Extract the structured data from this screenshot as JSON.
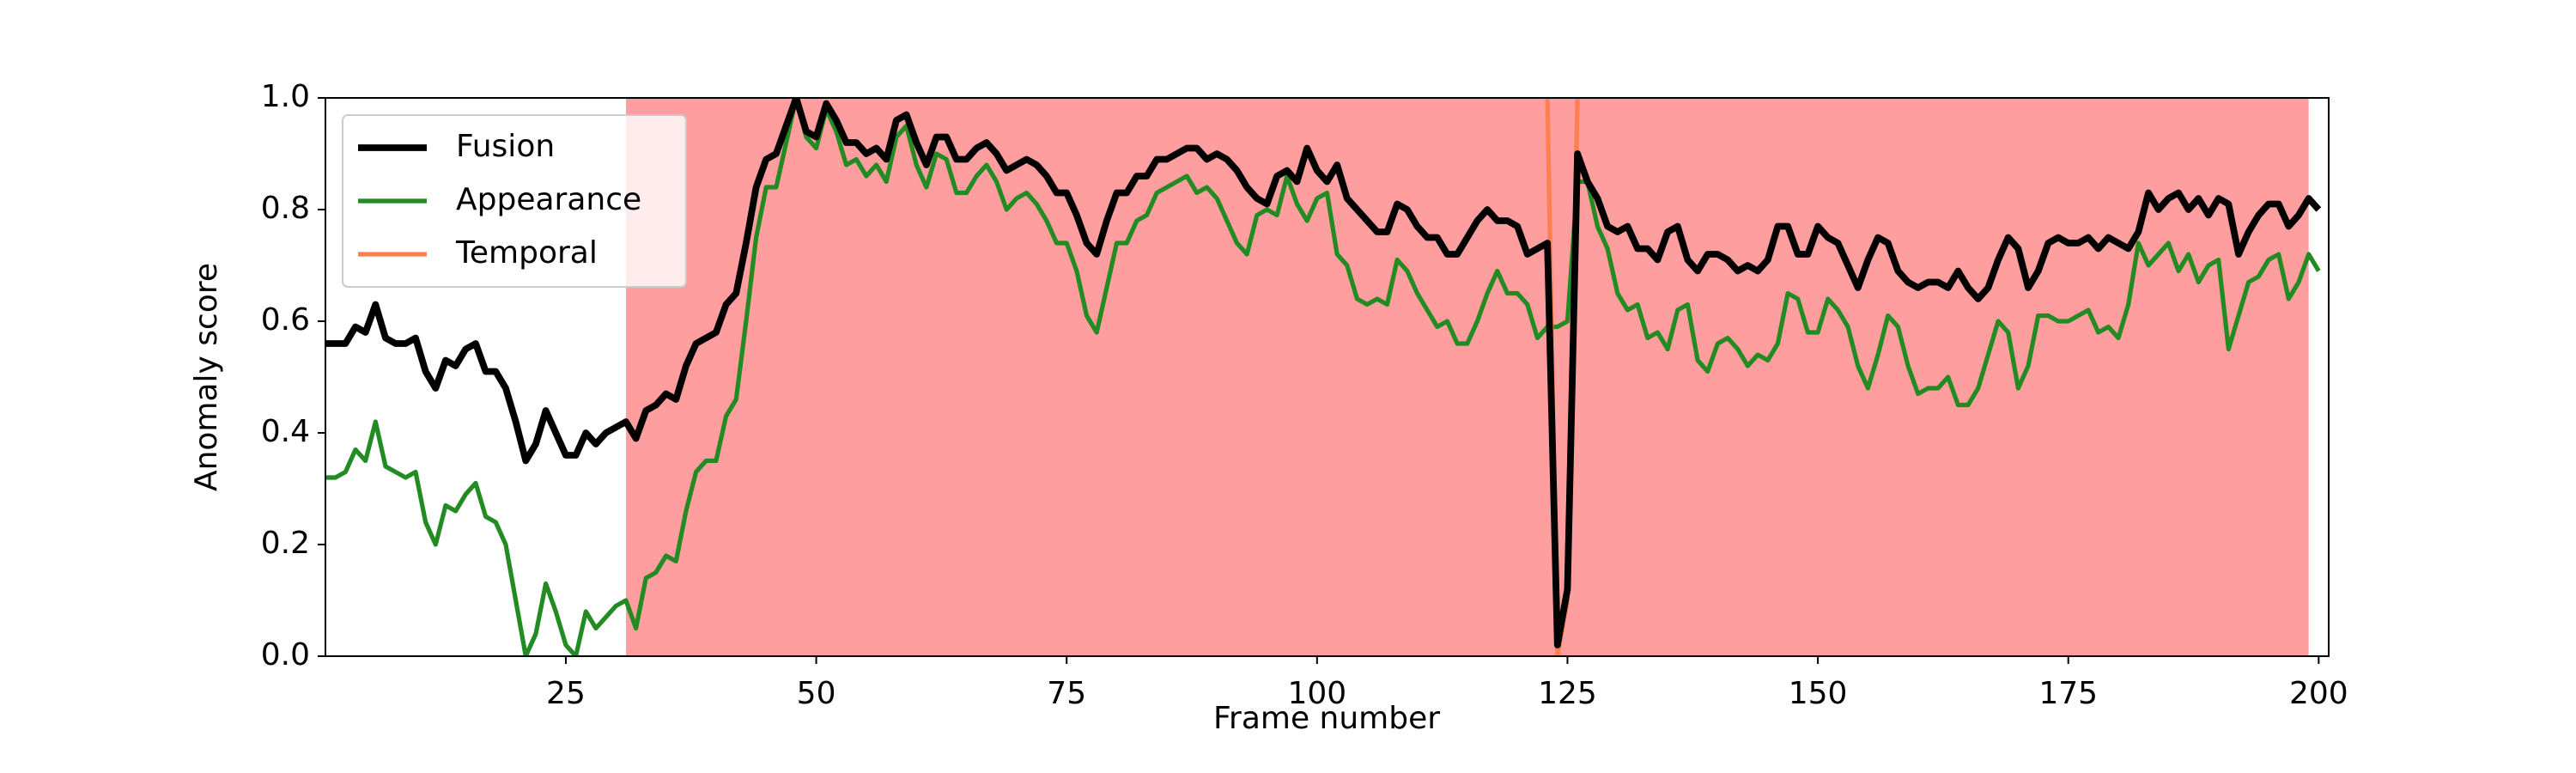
{
  "chart_data": {
    "type": "line",
    "xlabel": "Frame number",
    "ylabel": "Anomaly score",
    "xlim": [
      1,
      201
    ],
    "ylim": [
      0,
      1
    ],
    "xticks": [
      25,
      50,
      75,
      100,
      125,
      150,
      175,
      200
    ],
    "yticks": [
      {
        "value": 0,
        "label": "0.0"
      },
      {
        "value": 0.2,
        "label": "0.2"
      },
      {
        "value": 0.4,
        "label": "0.4"
      },
      {
        "value": 0.6,
        "label": "0.6"
      },
      {
        "value": 0.8,
        "label": "0.8"
      },
      {
        "value": 1,
        "label": "1.0"
      }
    ],
    "shaded_span": [
      31,
      199
    ],
    "shade_color": "#ff9999",
    "legend": "upper left",
    "x": [
      1,
      2,
      3,
      4,
      5,
      6,
      7,
      8,
      9,
      10,
      11,
      12,
      13,
      14,
      15,
      16,
      17,
      18,
      19,
      20,
      21,
      22,
      23,
      24,
      25,
      26,
      27,
      28,
      29,
      30,
      31,
      32,
      33,
      34,
      35,
      36,
      37,
      38,
      39,
      40,
      41,
      42,
      43,
      44,
      45,
      46,
      47,
      48,
      49,
      50,
      51,
      52,
      53,
      54,
      55,
      56,
      57,
      58,
      59,
      60,
      61,
      62,
      63,
      64,
      65,
      66,
      67,
      68,
      69,
      70,
      71,
      72,
      73,
      74,
      75,
      76,
      77,
      78,
      79,
      80,
      81,
      82,
      83,
      84,
      85,
      86,
      87,
      88,
      89,
      90,
      91,
      92,
      93,
      94,
      95,
      96,
      97,
      98,
      99,
      100,
      101,
      102,
      103,
      104,
      105,
      106,
      107,
      108,
      109,
      110,
      111,
      112,
      113,
      114,
      115,
      116,
      117,
      118,
      119,
      120,
      121,
      122,
      123,
      124,
      125,
      126,
      127,
      128,
      129,
      130,
      131,
      132,
      133,
      134,
      135,
      136,
      137,
      138,
      139,
      140,
      141,
      142,
      143,
      144,
      145,
      146,
      147,
      148,
      149,
      150,
      151,
      152,
      153,
      154,
      155,
      156,
      157,
      158,
      159,
      160,
      161,
      162,
      163,
      164,
      165,
      166,
      167,
      168,
      169,
      170,
      171,
      172,
      173,
      174,
      175,
      176,
      177,
      178,
      179,
      180,
      181,
      182,
      183,
      184,
      185,
      186,
      187,
      188,
      189,
      190,
      191,
      192,
      193,
      194,
      195,
      196,
      197,
      198,
      199,
      200
    ],
    "series": [
      {
        "name": "Fusion",
        "color": "#000000",
        "width": 3,
        "values": [
          0.56,
          0.56,
          0.56,
          0.59,
          0.58,
          0.63,
          0.57,
          0.56,
          0.56,
          0.57,
          0.51,
          0.48,
          0.53,
          0.52,
          0.55,
          0.56,
          0.51,
          0.51,
          0.48,
          0.42,
          0.35,
          0.38,
          0.44,
          0.4,
          0.36,
          0.36,
          0.4,
          0.38,
          0.4,
          0.41,
          0.42,
          0.39,
          0.44,
          0.45,
          0.47,
          0.46,
          0.52,
          0.56,
          0.57,
          0.58,
          0.63,
          0.65,
          0.74,
          0.84,
          0.89,
          0.9,
          0.95,
          1.0,
          0.94,
          0.93,
          0.99,
          0.96,
          0.92,
          0.92,
          0.9,
          0.91,
          0.89,
          0.96,
          0.97,
          0.92,
          0.88,
          0.93,
          0.93,
          0.89,
          0.89,
          0.91,
          0.92,
          0.9,
          0.87,
          0.88,
          0.89,
          0.88,
          0.86,
          0.83,
          0.83,
          0.79,
          0.74,
          0.72,
          0.78,
          0.83,
          0.83,
          0.86,
          0.86,
          0.89,
          0.89,
          0.9,
          0.91,
          0.91,
          0.89,
          0.9,
          0.89,
          0.87,
          0.84,
          0.82,
          0.81,
          0.86,
          0.87,
          0.85,
          0.91,
          0.87,
          0.85,
          0.88,
          0.82,
          0.8,
          0.78,
          0.76,
          0.76,
          0.81,
          0.8,
          0.77,
          0.75,
          0.75,
          0.72,
          0.72,
          0.75,
          0.78,
          0.8,
          0.78,
          0.78,
          0.77,
          0.72,
          0.73,
          0.74,
          0.02,
          0.12,
          0.9,
          0.85,
          0.82,
          0.77,
          0.76,
          0.77,
          0.73,
          0.73,
          0.71,
          0.76,
          0.77,
          0.71,
          0.69,
          0.72,
          0.72,
          0.71,
          0.69,
          0.7,
          0.69,
          0.71,
          0.77,
          0.77,
          0.72,
          0.72,
          0.77,
          0.75,
          0.74,
          0.7,
          0.66,
          0.71,
          0.75,
          0.74,
          0.69,
          0.67,
          0.66,
          0.67,
          0.67,
          0.66,
          0.69,
          0.66,
          0.64,
          0.66,
          0.71,
          0.75,
          0.73,
          0.66,
          0.69,
          0.74,
          0.75,
          0.74,
          0.74,
          0.75,
          0.73,
          0.75,
          0.74,
          0.73,
          0.76,
          0.83,
          0.8,
          0.82,
          0.83,
          0.8,
          0.82,
          0.79,
          0.82,
          0.81,
          0.72,
          0.76,
          0.79,
          0.81,
          0.81,
          0.77,
          0.79,
          0.82,
          0.8
        ]
      },
      {
        "name": "Appearance",
        "color": "#228b22",
        "width": 2,
        "values": [
          0.32,
          0.32,
          0.33,
          0.37,
          0.35,
          0.42,
          0.34,
          0.33,
          0.32,
          0.33,
          0.24,
          0.2,
          0.27,
          0.26,
          0.29,
          0.31,
          0.25,
          0.24,
          0.2,
          0.1,
          0.0,
          0.04,
          0.13,
          0.08,
          0.02,
          0.0,
          0.08,
          0.05,
          0.07,
          0.09,
          0.1,
          0.05,
          0.14,
          0.15,
          0.18,
          0.17,
          0.26,
          0.33,
          0.35,
          0.35,
          0.43,
          0.46,
          0.6,
          0.75,
          0.84,
          0.84,
          0.92,
          1.0,
          0.93,
          0.91,
          0.98,
          0.94,
          0.88,
          0.89,
          0.86,
          0.88,
          0.85,
          0.93,
          0.95,
          0.88,
          0.84,
          0.9,
          0.89,
          0.83,
          0.83,
          0.86,
          0.88,
          0.85,
          0.8,
          0.82,
          0.83,
          0.81,
          0.78,
          0.74,
          0.74,
          0.69,
          0.61,
          0.58,
          0.66,
          0.74,
          0.74,
          0.78,
          0.79,
          0.83,
          0.84,
          0.85,
          0.86,
          0.83,
          0.84,
          0.82,
          0.78,
          0.74,
          0.72,
          0.79,
          0.8,
          0.79,
          0.86,
          0.81,
          0.78,
          0.82,
          0.83,
          0.72,
          0.7,
          0.64,
          0.63,
          0.64,
          0.63,
          0.71,
          0.69,
          0.65,
          0.62,
          0.59,
          0.6,
          0.56,
          0.56,
          0.6,
          0.65,
          0.69,
          0.65,
          0.65,
          0.63,
          0.57,
          0.59,
          0.59,
          0.6,
          0.85,
          0.85,
          0.77,
          0.73,
          0.65,
          0.62,
          0.63,
          0.57,
          0.58,
          0.55,
          0.62,
          0.63,
          0.53,
          0.51,
          0.56,
          0.57,
          0.55,
          0.52,
          0.54,
          0.53,
          0.56,
          0.65,
          0.64,
          0.58,
          0.58,
          0.64,
          0.62,
          0.59,
          0.52,
          0.48,
          0.54,
          0.61,
          0.59,
          0.52,
          0.47,
          0.48,
          0.48,
          0.5,
          0.45,
          0.45,
          0.48,
          0.54,
          0.6,
          0.58,
          0.48,
          0.52,
          0.61,
          0.61,
          0.6,
          0.6,
          0.61,
          0.62,
          0.58,
          0.59,
          0.57,
          0.63,
          0.74,
          0.7,
          0.72,
          0.74,
          0.69,
          0.72,
          0.67,
          0.7,
          0.71,
          0.55,
          0.61,
          0.67,
          0.68,
          0.71,
          0.72,
          0.64,
          0.67,
          0.72,
          0.69
        ]
      },
      {
        "name": "Temporal",
        "color": "#ff7f50",
        "width": 2,
        "x": [
          123,
          124,
          125,
          126
        ],
        "values": [
          1.0,
          0.0,
          0.1,
          1.0
        ]
      }
    ]
  }
}
